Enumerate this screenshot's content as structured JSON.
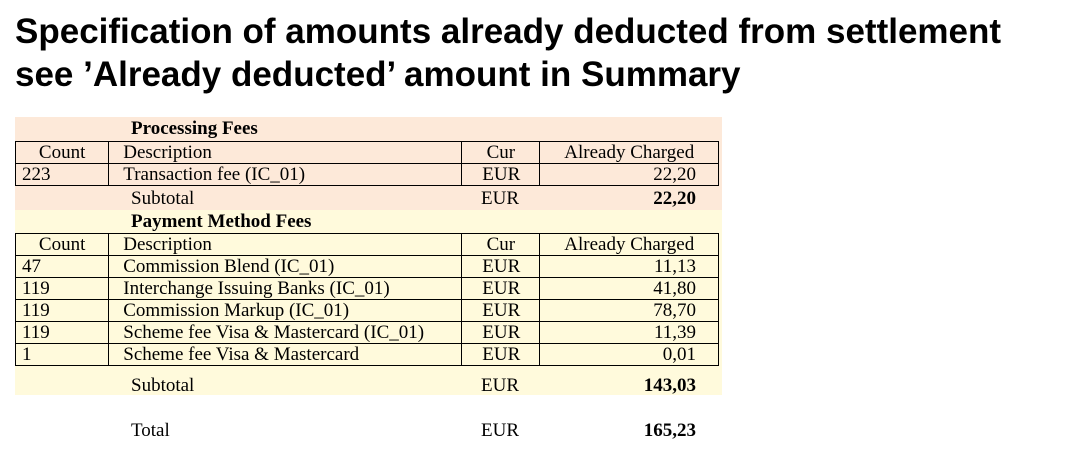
{
  "heading": {
    "line1": "Specification of amounts already deducted from settlement",
    "line2": "see ’Already deducted’ amount in Summary"
  },
  "colors": {
    "processing_band": "#fde9d9",
    "method_band": "#fffadc"
  },
  "columns": {
    "count": "Count",
    "description": "Description",
    "currency": "Cur",
    "amount": "Already Charged"
  },
  "processing": {
    "title": "Processing Fees",
    "rows": [
      {
        "count": "223",
        "description": "Transaction fee (IC_01)",
        "currency": "EUR",
        "amount": "22,20"
      }
    ],
    "subtotal_label": "Subtotal",
    "subtotal_currency": "EUR",
    "subtotal_amount": "22,20"
  },
  "method": {
    "title": "Payment Method Fees",
    "rows": [
      {
        "count": "47",
        "description": "Commission Blend (IC_01)",
        "currency": "EUR",
        "amount": "11,13"
      },
      {
        "count": "119",
        "description": "Interchange Issuing Banks (IC_01)",
        "currency": "EUR",
        "amount": "41,80"
      },
      {
        "count": "119",
        "description": "Commission Markup (IC_01)",
        "currency": "EUR",
        "amount": "78,70"
      },
      {
        "count": "119",
        "description": "Scheme fee Visa & Mastercard (IC_01)",
        "currency": "EUR",
        "amount": "11,39"
      },
      {
        "count": "1",
        "description": "Scheme fee Visa & Mastercard",
        "currency": "EUR",
        "amount": "0,01"
      }
    ],
    "subtotal_label": "Subtotal",
    "subtotal_currency": "EUR",
    "subtotal_amount": "143,03"
  },
  "total": {
    "label": "Total",
    "currency": "EUR",
    "amount": "165,23"
  }
}
